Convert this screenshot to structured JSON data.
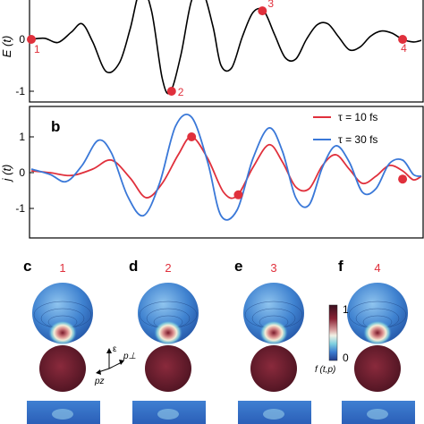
{
  "chart_data": [
    {
      "type": "line",
      "panel_label": "",
      "ylabel": "E (t)",
      "ylim": [
        -1.2,
        1.2
      ],
      "yticks": [
        "-1",
        "0"
      ],
      "series": [
        {
          "color": "#000000",
          "points": [
            [
              0,
              0.0
            ],
            [
              0.5,
              0.02
            ],
            [
              1.0,
              -0.06
            ],
            [
              1.5,
              0.14
            ],
            [
              1.9,
              0.3
            ],
            [
              2.3,
              -0.05
            ],
            [
              2.8,
              -0.62
            ],
            [
              3.3,
              -0.45
            ],
            [
              3.7,
              0.2
            ],
            [
              4.1,
              0.98
            ],
            [
              4.5,
              0.55
            ],
            [
              4.9,
              -0.75
            ],
            [
              5.2,
              -1.02
            ],
            [
              5.6,
              -0.3
            ],
            [
              6.0,
              0.75
            ],
            [
              6.4,
              0.93
            ],
            [
              6.8,
              0.25
            ],
            [
              7.1,
              -0.5
            ],
            [
              7.5,
              -0.55
            ],
            [
              7.9,
              0.05
            ],
            [
              8.3,
              0.52
            ],
            [
              8.7,
              0.55
            ],
            [
              9.1,
              0.1
            ],
            [
              9.5,
              -0.35
            ],
            [
              9.9,
              -0.38
            ],
            [
              10.3,
              0.0
            ],
            [
              10.7,
              0.28
            ],
            [
              11.1,
              0.3
            ],
            [
              11.5,
              0.05
            ],
            [
              11.9,
              -0.2
            ],
            [
              12.3,
              -0.15
            ],
            [
              12.7,
              0.06
            ],
            [
              13.1,
              0.16
            ],
            [
              13.5,
              0.12
            ],
            [
              13.9,
              0.0
            ],
            [
              14.3,
              -0.05
            ],
            [
              14.6,
              -0.02
            ]
          ]
        }
      ],
      "markers": [
        {
          "label": "1",
          "x": 0.0,
          "y": 0.0
        },
        {
          "label": "2",
          "x": 5.25,
          "y": -1.0
        },
        {
          "label": "3",
          "x": 8.65,
          "y": 0.55
        },
        {
          "label": "4",
          "x": 13.9,
          "y": 0.0
        }
      ],
      "xlim": [
        0,
        14.6
      ]
    },
    {
      "type": "line",
      "panel_label": "b",
      "ylabel": "j (t)",
      "ylim": [
        -1.6,
        1.9
      ],
      "yticks": [
        "-1",
        "0",
        "1"
      ],
      "series": [
        {
          "name": "τ = 10 fs",
          "color": "#e0303c",
          "points": [
            [
              0,
              0.05
            ],
            [
              0.7,
              0.0
            ],
            [
              1.5,
              -0.08
            ],
            [
              2.3,
              0.1
            ],
            [
              3.0,
              0.35
            ],
            [
              3.7,
              -0.15
            ],
            [
              4.3,
              -0.7
            ],
            [
              4.9,
              -0.3
            ],
            [
              5.5,
              0.5
            ],
            [
              6.0,
              1.0
            ],
            [
              6.6,
              0.4
            ],
            [
              7.2,
              -0.55
            ],
            [
              7.7,
              -0.65
            ],
            [
              8.3,
              0.15
            ],
            [
              8.9,
              0.78
            ],
            [
              9.4,
              0.3
            ],
            [
              9.9,
              -0.4
            ],
            [
              10.4,
              -0.45
            ],
            [
              10.9,
              0.2
            ],
            [
              11.4,
              0.5
            ],
            [
              11.9,
              0.1
            ],
            [
              12.4,
              -0.3
            ],
            [
              12.9,
              -0.1
            ],
            [
              13.4,
              0.2
            ],
            [
              13.9,
              0.05
            ],
            [
              14.3,
              -0.2
            ],
            [
              14.6,
              -0.1
            ]
          ]
        },
        {
          "name": "τ = 30 fs",
          "color": "#3a78d8",
          "points": [
            [
              0,
              0.1
            ],
            [
              0.7,
              -0.05
            ],
            [
              1.3,
              -0.25
            ],
            [
              1.9,
              0.2
            ],
            [
              2.5,
              0.9
            ],
            [
              3.0,
              0.55
            ],
            [
              3.6,
              -0.65
            ],
            [
              4.2,
              -1.2
            ],
            [
              4.8,
              -0.3
            ],
            [
              5.4,
              1.3
            ],
            [
              6.0,
              1.55
            ],
            [
              6.6,
              0.3
            ],
            [
              7.1,
              -1.2
            ],
            [
              7.7,
              -1.05
            ],
            [
              8.3,
              0.4
            ],
            [
              8.9,
              1.25
            ],
            [
              9.4,
              0.6
            ],
            [
              9.9,
              -0.7
            ],
            [
              10.4,
              -0.9
            ],
            [
              10.9,
              0.15
            ],
            [
              11.4,
              0.75
            ],
            [
              11.9,
              0.3
            ],
            [
              12.4,
              -0.55
            ],
            [
              12.9,
              -0.45
            ],
            [
              13.4,
              0.25
            ],
            [
              13.9,
              0.35
            ],
            [
              14.3,
              -0.05
            ],
            [
              14.6,
              -0.1
            ]
          ]
        }
      ],
      "markers": [
        {
          "x": 6.0,
          "y": 1.0
        },
        {
          "x": 7.75,
          "y": -0.62
        },
        {
          "x": 13.9,
          "y": -0.18
        }
      ],
      "xlim": [
        0,
        14.6
      ]
    }
  ],
  "lower_panels": [
    {
      "letter": "c",
      "number": "1"
    },
    {
      "letter": "d",
      "number": "2"
    },
    {
      "letter": "e",
      "number": "3"
    },
    {
      "letter": "f",
      "number": "4"
    }
  ],
  "colorbar": {
    "label": "f (t,p)",
    "tick_max": "1",
    "tick_min": "0",
    "colors": [
      "#3a0f1e",
      "#8a2436",
      "#d8a0a0",
      "#f2f2e6",
      "#7fd0e0",
      "#3a7bd0",
      "#223c8a"
    ]
  },
  "axes_key": {
    "vertical": "ε",
    "perp": "p⊥",
    "z": "pz"
  },
  "colors": {
    "red": "#e0303c",
    "blue": "#3a78d8",
    "sphere_top": "#2f6fc4",
    "sphere_bottom": "#6e1f30"
  }
}
